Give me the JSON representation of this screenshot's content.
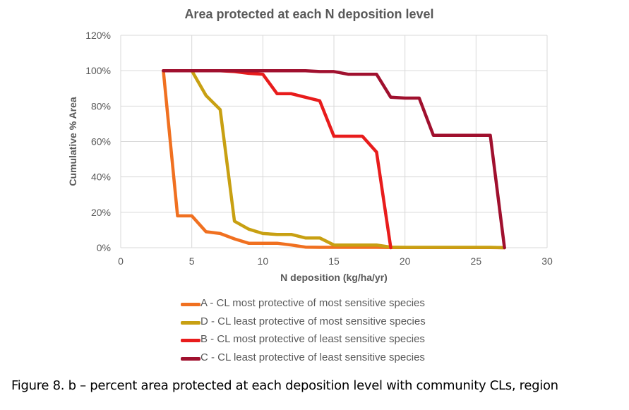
{
  "caption": "Figure 8. b – percent area protected at each deposition level with community CLs, region",
  "chart_data": {
    "type": "line",
    "title": "Area protected at each N  deposition level",
    "xlabel": "N deposition (kg/ha/yr)",
    "ylabel": "Cumulative % Area",
    "xlim": [
      0,
      30
    ],
    "ylim": [
      0,
      120
    ],
    "x_ticks": [
      "0",
      "5",
      "10",
      "15",
      "20",
      "25",
      "30"
    ],
    "y_ticks": [
      "0%",
      "20%",
      "40%",
      "60%",
      "80%",
      "100%",
      "120%"
    ],
    "grid": true,
    "legend_position": "bottom",
    "series": [
      {
        "name": "A - CL most protective of most sensitive species",
        "color": "#f07020",
        "points": [
          [
            3,
            100
          ],
          [
            4,
            18
          ],
          [
            5,
            18
          ],
          [
            6,
            9
          ],
          [
            7,
            8
          ],
          [
            8,
            5
          ],
          [
            9,
            2.5
          ],
          [
            10,
            2.5
          ],
          [
            11,
            2.5
          ],
          [
            12,
            1.5
          ],
          [
            13,
            0.3
          ],
          [
            14,
            0.2
          ],
          [
            15,
            0.2
          ],
          [
            16,
            0.2
          ],
          [
            17,
            0.2
          ],
          [
            18,
            0.2
          ],
          [
            19,
            0.1
          ],
          [
            20,
            0.1
          ],
          [
            21,
            0.1
          ],
          [
            22,
            0.1
          ],
          [
            23,
            0.1
          ],
          [
            24,
            0.1
          ],
          [
            25,
            0.1
          ],
          [
            26,
            0.1
          ],
          [
            27,
            0
          ]
        ]
      },
      {
        "name": "D - CL least protective of most sensitive species",
        "color": "#c8a012",
        "points": [
          [
            3,
            100
          ],
          [
            4,
            100
          ],
          [
            5,
            100
          ],
          [
            6,
            86
          ],
          [
            7,
            78
          ],
          [
            8,
            15
          ],
          [
            9,
            10.5
          ],
          [
            10,
            8
          ],
          [
            11,
            7.5
          ],
          [
            12,
            7.5
          ],
          [
            13,
            5.5
          ],
          [
            14,
            5.5
          ],
          [
            15,
            1.5
          ],
          [
            16,
            1.5
          ],
          [
            17,
            1.5
          ],
          [
            18,
            1.5
          ],
          [
            19,
            0.3
          ],
          [
            20,
            0.2
          ],
          [
            21,
            0.2
          ],
          [
            22,
            0.2
          ],
          [
            23,
            0.2
          ],
          [
            24,
            0.2
          ],
          [
            25,
            0.2
          ],
          [
            26,
            0.2
          ],
          [
            27,
            0
          ]
        ]
      },
      {
        "name": "B - CL most protective of least sensitive species",
        "color": "#e81c1c",
        "points": [
          [
            3,
            100
          ],
          [
            4,
            100
          ],
          [
            5,
            100
          ],
          [
            6,
            100
          ],
          [
            7,
            100
          ],
          [
            8,
            99.5
          ],
          [
            9,
            98.5
          ],
          [
            10,
            98
          ],
          [
            11,
            87
          ],
          [
            12,
            87
          ],
          [
            13,
            85
          ],
          [
            14,
            83
          ],
          [
            15,
            63
          ],
          [
            16,
            63
          ],
          [
            17,
            63
          ],
          [
            18,
            54
          ],
          [
            19,
            0
          ]
        ]
      },
      {
        "name": "C - CL least protective of least sensitive species",
        "color": "#a0102e",
        "points": [
          [
            3,
            100
          ],
          [
            4,
            100
          ],
          [
            5,
            100
          ],
          [
            6,
            100
          ],
          [
            7,
            100
          ],
          [
            8,
            100
          ],
          [
            9,
            100
          ],
          [
            10,
            100
          ],
          [
            11,
            100
          ],
          [
            12,
            100
          ],
          [
            13,
            100
          ],
          [
            14,
            99.5
          ],
          [
            15,
            99.5
          ],
          [
            16,
            98
          ],
          [
            17,
            98
          ],
          [
            18,
            98
          ],
          [
            19,
            85
          ],
          [
            20,
            84.5
          ],
          [
            21,
            84.5
          ],
          [
            22,
            63.5
          ],
          [
            23,
            63.5
          ],
          [
            24,
            63.5
          ],
          [
            25,
            63.5
          ],
          [
            26,
            63.5
          ],
          [
            27,
            0
          ]
        ]
      }
    ]
  }
}
